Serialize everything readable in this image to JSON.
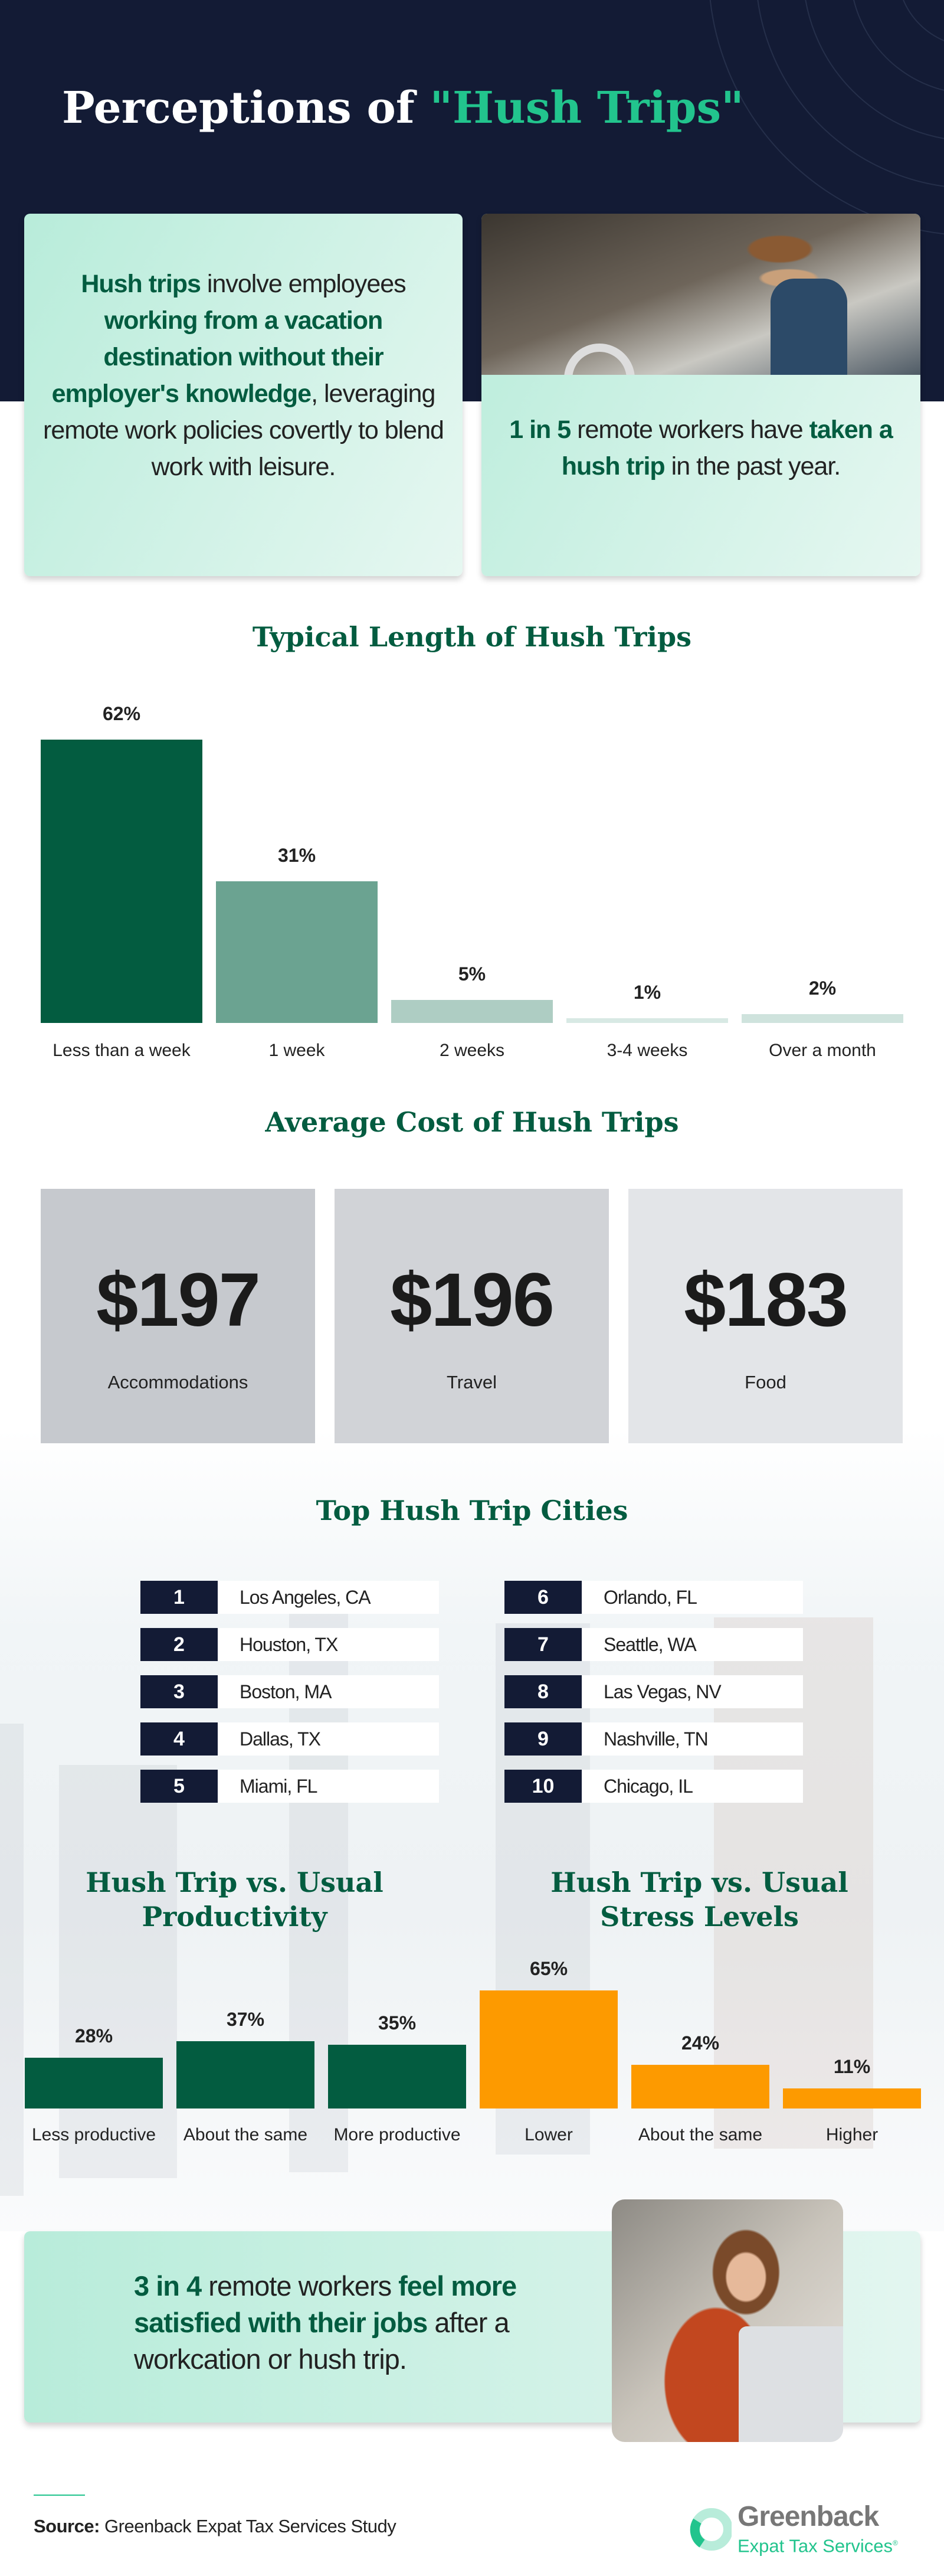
{
  "header": {
    "title_prefix": "Perceptions of ",
    "title_highlight": "\"Hush Trips\""
  },
  "intro_card": {
    "parts": [
      {
        "text": "Hush trips",
        "bold": true
      },
      {
        "text": " involve employees ",
        "bold": false
      },
      {
        "text": "working from a vacation destination without their employer's knowledge",
        "bold": true
      },
      {
        "text": ", leveraging remote work policies covertly to blend work with leisure.",
        "bold": false
      }
    ]
  },
  "stat_card": {
    "parts": [
      {
        "text": "1 in 5",
        "bold": true
      },
      {
        "text": " remote workers have ",
        "bold": false
      },
      {
        "text": "taken a hush trip",
        "bold": true
      },
      {
        "text": " in the past year.",
        "bold": false
      }
    ],
    "photo": "man-with-hat-and-backpack-photo"
  },
  "colors": {
    "navy": "#131b35",
    "accent": "#22c48d",
    "dark_green": "#035c40",
    "orange": "#fd9a00",
    "card_mint": "#c6f0e2"
  },
  "chart_data": [
    {
      "type": "bar",
      "title": "Typical Length of Hush Trips",
      "categories": [
        "Less than a week",
        "1 week",
        "2 weeks",
        "3-4 weeks",
        "Over a month"
      ],
      "values": [
        62,
        31,
        5,
        1,
        2
      ],
      "labels": [
        "62%",
        "31%",
        "5%",
        "1%",
        "2%"
      ],
      "colors": [
        "#035c40",
        "#6ba391",
        "#aecdc3",
        "#d8e9e4",
        "#cfe3dd"
      ],
      "grid": false,
      "axes_visible": false
    },
    {
      "type": "bar",
      "title": "Hush Trip vs. Usual Productivity",
      "categories": [
        "Less productive",
        "About the same",
        "More productive"
      ],
      "values": [
        28,
        37,
        35
      ],
      "labels": [
        "28%",
        "37%",
        "35%"
      ],
      "color": "#035c40",
      "grid": false,
      "axes_visible": false
    },
    {
      "type": "bar",
      "title": "Hush Trip vs. Usual Stress Levels",
      "categories": [
        "Lower",
        "About the same",
        "Higher"
      ],
      "values": [
        65,
        24,
        11
      ],
      "labels": [
        "65%",
        "24%",
        "11%"
      ],
      "color": "#fd9a00",
      "grid": false,
      "axes_visible": false
    }
  ],
  "cost": {
    "title": "Average Cost of Hush Trips",
    "items": [
      {
        "price": "$197",
        "label": "Accommodations",
        "bg": "#c6c9ce"
      },
      {
        "price": "$196",
        "label": "Travel",
        "bg": "#d1d3d7"
      },
      {
        "price": "$183",
        "label": "Food",
        "bg": "#e3e5e8"
      }
    ]
  },
  "cities": {
    "title": "Top Hush Trip Cities",
    "items": [
      {
        "rank": "1",
        "name": "Los Angeles, CA"
      },
      {
        "rank": "2",
        "name": "Houston, TX"
      },
      {
        "rank": "3",
        "name": "Boston, MA"
      },
      {
        "rank": "4",
        "name": "Dallas, TX"
      },
      {
        "rank": "5",
        "name": "Miami, FL"
      },
      {
        "rank": "6",
        "name": "Orlando, FL"
      },
      {
        "rank": "7",
        "name": "Seattle, WA"
      },
      {
        "rank": "8",
        "name": "Las Vegas, NV"
      },
      {
        "rank": "9",
        "name": "Nashville, TN"
      },
      {
        "rank": "10",
        "name": "Chicago, IL"
      }
    ]
  },
  "productivity": {
    "title_line1": "Hush Trip vs. Usual",
    "title_line2": "Productivity"
  },
  "stress": {
    "title_line1": "Hush Trip vs. Usual",
    "title_line2": "Stress Levels"
  },
  "satisfaction_card": {
    "parts": [
      {
        "text": "3 in 4",
        "bold": true
      },
      {
        "text": " remote workers ",
        "bold": false
      },
      {
        "text": "feel more satisfied with their jobs",
        "bold": true
      },
      {
        "text": " after a workcation or hush trip.",
        "bold": false
      }
    ],
    "photo": "smiling-woman-at-laptop-photo"
  },
  "footer": {
    "source_label": "Source:",
    "source_text": " Greenback Expat Tax Services Study",
    "logo_name": "Greenback",
    "logo_sub": "Expat Tax Services",
    "logo_mark": "®"
  }
}
